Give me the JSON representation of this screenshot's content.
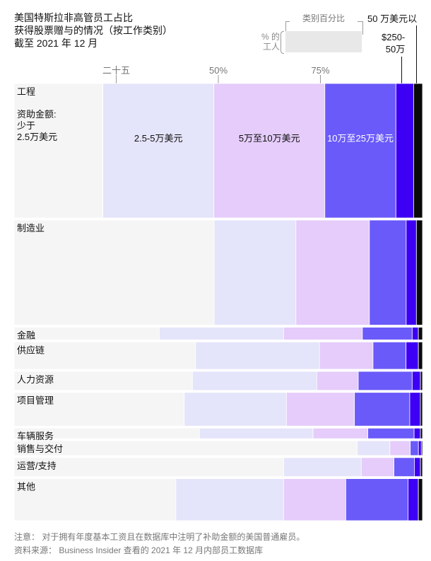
{
  "title_lines": [
    "美国特斯拉非高管员工占比",
    "获得股票赠与的情况（按工作类别）",
    "截至 2021 年 12 月"
  ],
  "legend": {
    "heading": "类别百分比",
    "left_line1": "% 的",
    "left_line2": "工人",
    "over_500k": "50 万美元以",
    "range_250_500_line1": "$250-",
    "range_250_500_line2": "50万"
  },
  "colors": [
    "#f5f5f5",
    "#e4e4fa",
    "#e5ccfa",
    "#6a5af9",
    "#3d00f5",
    "#0a0a0a"
  ],
  "notes": {
    "note": "注意：  对于拥有年度基本工资且在数据库中注明了补助金额的美国普通雇员。",
    "source": "资料来源：  Business Insider 查看的 2021 年 12 月内部员工数据库"
  },
  "chart_data": {
    "type": "marimekko",
    "x_axis_ticks": [
      {
        "value": 25,
        "label": "二十五"
      },
      {
        "value": 50,
        "label": "50%"
      },
      {
        "value": 75,
        "label": "75%"
      }
    ],
    "xlim": [
      0,
      100
    ],
    "segments": [
      "少于2.5万美元",
      "2.5-5万美元",
      "5万至10万美元",
      "10万至25万美元",
      "$250-50万",
      "50 万美元以"
    ],
    "inline_segment_labels": [
      "资助金额:\n少于\n2.5万美元",
      "2.5-5万美元",
      "5万至10万美元",
      "10万至25万美元"
    ],
    "categories": [
      {
        "name": "工程",
        "worker_share": 32.0,
        "shares": [
          20.0,
          25.0,
          25.0,
          16.0,
          4.0,
          2.0
        ]
      },
      {
        "name": "制造业",
        "worker_share": 25.0,
        "shares": [
          49.0,
          20.0,
          18.0,
          9.0,
          2.5,
          1.5
        ]
      },
      {
        "name": "金融",
        "worker_share": 3.0,
        "shares": [
          35.0,
          30.0,
          19.0,
          12.0,
          1.5,
          1.0
        ]
      },
      {
        "name": "供应链",
        "worker_share": 6.5,
        "shares": [
          44.0,
          30.0,
          13.0,
          8.0,
          3.0,
          1.0
        ]
      },
      {
        "name": "人力资源",
        "worker_share": 4.5,
        "shares": [
          43.0,
          30.0,
          10.0,
          13.0,
          2.0,
          0.5
        ]
      },
      {
        "name": "项目管理",
        "worker_share": 8.0,
        "shares": [
          40.0,
          24.0,
          16.0,
          13.0,
          2.5,
          0.5
        ]
      },
      {
        "name": "车辆服务",
        "worker_share": 2.5,
        "shares": [
          44.0,
          27.0,
          13.0,
          11.0,
          1.5,
          0.5
        ]
      },
      {
        "name": "销售与交付",
        "worker_share": 3.5,
        "shares": [
          84.0,
          8.0,
          5.0,
          2.0,
          0.7,
          0.3
        ]
      },
      {
        "name": "运营/支持",
        "worker_share": 4.5,
        "shares": [
          66.0,
          19.0,
          8.0,
          5.0,
          1.5,
          0.5
        ]
      },
      {
        "name": "其他",
        "worker_share": 10.0,
        "shares": [
          39.0,
          26.0,
          15.0,
          15.0,
          2.5,
          1.0
        ]
      }
    ]
  }
}
